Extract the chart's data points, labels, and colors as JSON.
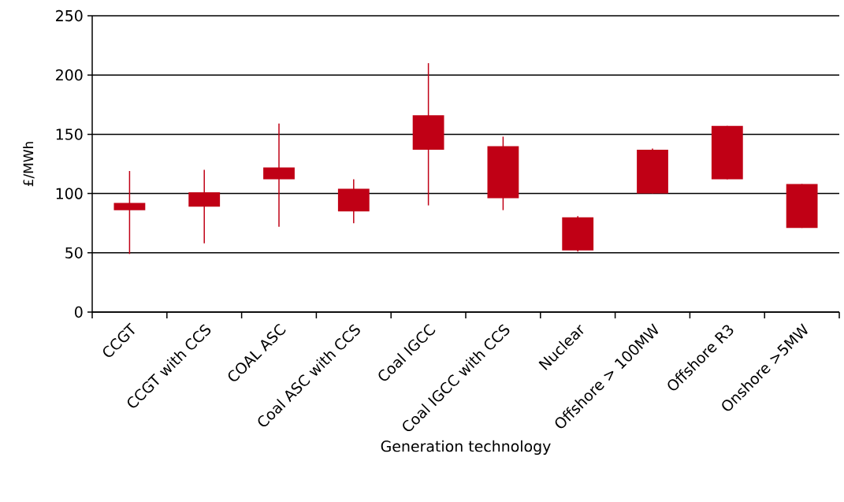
{
  "chart_data": {
    "type": "candlestick",
    "categories": [
      "CCGT",
      "CCGT with CCS",
      "COAL ASC",
      "Coal ASC with CCS",
      "Coal IGCC",
      "Coal IGCC with CCS",
      "Nuclear",
      "Offshore > 100MW",
      "Offshore R3",
      "Onshore >5MW"
    ],
    "ohlc": [
      [
        86,
        119,
        49,
        92
      ],
      [
        89,
        120,
        58,
        101
      ],
      [
        112,
        159,
        72,
        122
      ],
      [
        85,
        112,
        75,
        104
      ],
      [
        137,
        210,
        90,
        166
      ],
      [
        96,
        148,
        86,
        140
      ],
      [
        52,
        81,
        51,
        80
      ],
      [
        100,
        138,
        100,
        137
      ],
      [
        112,
        157,
        112,
        157
      ],
      [
        71,
        108,
        71,
        108
      ]
    ],
    "color": "#c00015",
    "ylim": [
      0,
      250
    ],
    "yticks": [
      0,
      50,
      100,
      150,
      200,
      250
    ],
    "xlabel": "Generation technology",
    "ylabel": "£/MWh",
    "grid": "y"
  }
}
